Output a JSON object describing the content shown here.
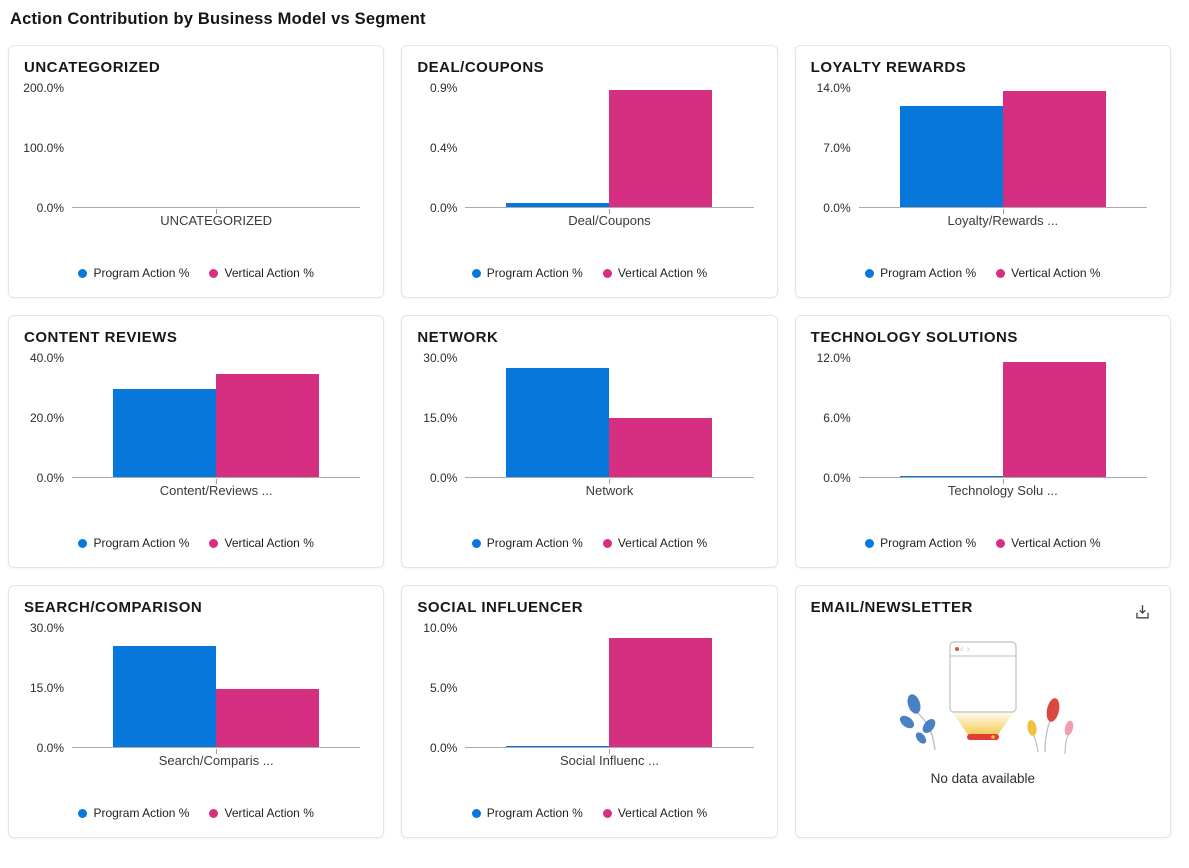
{
  "page": {
    "title": "Action Contribution by Business Model vs Segment"
  },
  "colors": {
    "program": "#0877DB",
    "vertical": "#D62F82",
    "axis": "#ABABAB"
  },
  "legend_labels": [
    "Program Action %",
    "Vertical Action %"
  ],
  "chart_data": [
    {
      "type": "bar",
      "title": "UNCATEGORIZED",
      "categories": [
        "UNCATEGORIZED"
      ],
      "series": [
        {
          "name": "Program Action %",
          "values": [
            0
          ]
        },
        {
          "name": "Vertical Action %",
          "values": [
            0
          ]
        }
      ],
      "ylim": [
        0,
        200
      ],
      "ytick_labels": [
        "200.0%",
        "100.0%",
        "0.0%"
      ],
      "ylabel": "",
      "xlabel": "",
      "grid": false,
      "legend_position": "bottom"
    },
    {
      "type": "bar",
      "title": "DEAL/COUPONS",
      "categories": [
        "Deal/Coupons"
      ],
      "series": [
        {
          "name": "Program Action %",
          "values": [
            0.03
          ]
        },
        {
          "name": "Vertical Action %",
          "values": [
            0.88
          ]
        }
      ],
      "ylim": [
        0,
        0.9
      ],
      "ytick_labels": [
        "0.9%",
        "0.4%",
        "0.0%"
      ],
      "ylabel": "",
      "xlabel": "",
      "grid": false,
      "legend_position": "bottom"
    },
    {
      "type": "bar",
      "title": "LOYALTY REWARDS",
      "categories": [
        "Loyalty/Rewards ..."
      ],
      "series": [
        {
          "name": "Program Action %",
          "values": [
            11.8
          ]
        },
        {
          "name": "Vertical Action %",
          "values": [
            13.5
          ]
        }
      ],
      "ylim": [
        0,
        14
      ],
      "ytick_labels": [
        "14.0%",
        "7.0%",
        "0.0%"
      ],
      "ylabel": "",
      "xlabel": "",
      "grid": false,
      "legend_position": "bottom"
    },
    {
      "type": "bar",
      "title": "CONTENT REVIEWS",
      "categories": [
        "Content/Reviews ..."
      ],
      "series": [
        {
          "name": "Program Action %",
          "values": [
            29.5
          ]
        },
        {
          "name": "Vertical Action %",
          "values": [
            34.5
          ]
        }
      ],
      "ylim": [
        0,
        40
      ],
      "ytick_labels": [
        "40.0%",
        "20.0%",
        "0.0%"
      ],
      "ylabel": "",
      "xlabel": "",
      "grid": false,
      "legend_position": "bottom"
    },
    {
      "type": "bar",
      "title": "NETWORK",
      "categories": [
        "Network"
      ],
      "series": [
        {
          "name": "Program Action %",
          "values": [
            27.3
          ]
        },
        {
          "name": "Vertical Action %",
          "values": [
            14.8
          ]
        }
      ],
      "ylim": [
        0,
        30
      ],
      "ytick_labels": [
        "30.0%",
        "15.0%",
        "0.0%"
      ],
      "ylabel": "",
      "xlabel": "",
      "grid": false,
      "legend_position": "bottom"
    },
    {
      "type": "bar",
      "title": "TECHNOLOGY SOLUTIONS",
      "categories": [
        "Technology Solu ..."
      ],
      "series": [
        {
          "name": "Program Action %",
          "values": [
            0.1
          ]
        },
        {
          "name": "Vertical Action %",
          "values": [
            11.5
          ]
        }
      ],
      "ylim": [
        0,
        12
      ],
      "ytick_labels": [
        "12.0%",
        "6.0%",
        "0.0%"
      ],
      "ylabel": "",
      "xlabel": "",
      "grid": false,
      "legend_position": "bottom"
    },
    {
      "type": "bar",
      "title": "SEARCH/COMPARISON",
      "categories": [
        "Search/Comparis ..."
      ],
      "series": [
        {
          "name": "Program Action %",
          "values": [
            25.3
          ]
        },
        {
          "name": "Vertical Action %",
          "values": [
            14.5
          ]
        }
      ],
      "ylim": [
        0,
        30
      ],
      "ytick_labels": [
        "30.0%",
        "15.0%",
        "0.0%"
      ],
      "ylabel": "",
      "xlabel": "",
      "grid": false,
      "legend_position": "bottom"
    },
    {
      "type": "bar",
      "title": "SOCIAL INFLUENCER",
      "categories": [
        "Social Influenc ..."
      ],
      "series": [
        {
          "name": "Program Action %",
          "values": [
            0.05
          ]
        },
        {
          "name": "Vertical Action %",
          "values": [
            9.1
          ]
        }
      ],
      "ylim": [
        0,
        10
      ],
      "ytick_labels": [
        "10.0%",
        "5.0%",
        "0.0%"
      ],
      "ylabel": "",
      "xlabel": "",
      "grid": false,
      "legend_position": "bottom"
    },
    {
      "type": "empty",
      "title": "EMAIL/NEWSLETTER",
      "message": "No data available",
      "icon": "download-icon",
      "illustration": "empty-browser-window-with-plants"
    }
  ]
}
